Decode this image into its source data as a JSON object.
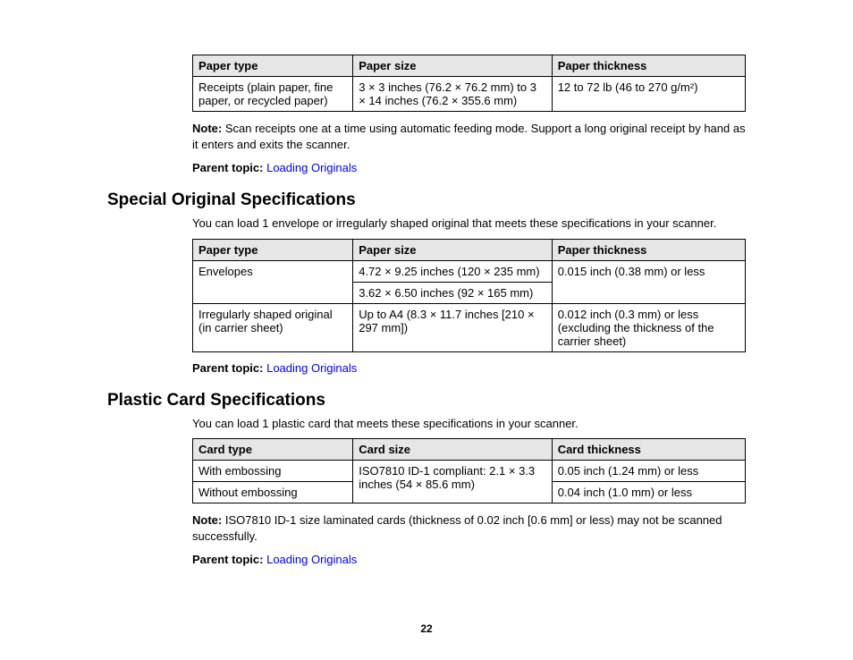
{
  "pageNumber": "22",
  "parentTopicLabel": "Parent topic:",
  "parentTopicLink": "Loading Originals",
  "noteLabel": "Note:",
  "section1": {
    "table": {
      "headers": [
        "Paper type",
        "Paper size",
        "Paper thickness"
      ],
      "row": {
        "type": "Receipts (plain paper, fine paper, or recycled paper)",
        "size": "3 × 3 inches (76.2 × 76.2 mm) to 3 × 14 inches (76.2 × 355.6 mm)",
        "thick": "12 to 72 lb (46 to 270 g/m²)"
      }
    },
    "note": "Scan receipts one at a time using automatic feeding mode. Support a long original receipt by hand as it enters and exits the scanner."
  },
  "section2": {
    "heading": "Special Original Specifications",
    "intro": "You can load 1 envelope or irregularly shaped original that meets these specifications in your scanner.",
    "table": {
      "headers": [
        "Paper type",
        "Paper size",
        "Paper thickness"
      ],
      "row1": {
        "type": "Envelopes",
        "sizeA": "4.72 × 9.25 inches (120 × 235 mm)",
        "sizeB": "3.62 × 6.50 inches (92 × 165 mm)",
        "thick": "0.015 inch (0.38 mm) or less"
      },
      "row2": {
        "type": "Irregularly shaped original (in carrier sheet)",
        "size": "Up to A4 (8.3 × 11.7 inches [210 × 297 mm])",
        "thick": "0.012 inch (0.3 mm) or less (excluding the thickness of the carrier sheet)"
      }
    }
  },
  "section3": {
    "heading": "Plastic Card Specifications",
    "intro": "You can load 1 plastic card that meets these specifications in your scanner.",
    "table": {
      "headers": [
        "Card type",
        "Card size",
        "Card thickness"
      ],
      "sharedSize": "ISO7810 ID-1 compliant: 2.1 × 3.3 inches (54 × 85.6 mm)",
      "row1": {
        "type": "With embossing",
        "thick": "0.05 inch (1.24 mm) or less"
      },
      "row2": {
        "type": "Without embossing",
        "thick": "0.04 inch (1.0 mm) or less"
      }
    },
    "note": "ISO7810 ID-1 size laminated cards (thickness of 0.02 inch [0.6 mm] or less) may not be scanned successfully."
  }
}
